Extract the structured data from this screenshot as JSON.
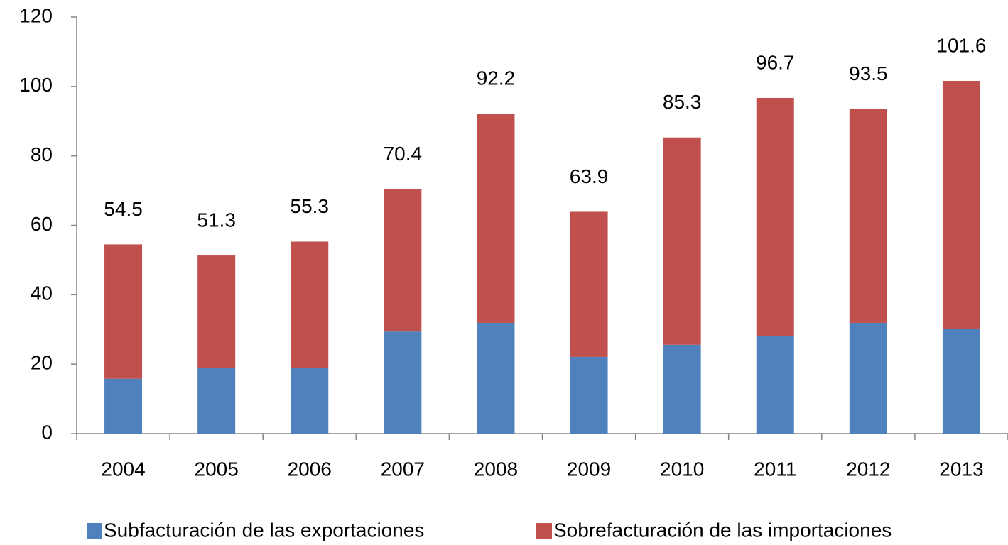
{
  "chart_data": {
    "type": "stacked_bar",
    "categories": [
      "2004",
      "2005",
      "2006",
      "2007",
      "2008",
      "2009",
      "2010",
      "2011",
      "2012",
      "2013"
    ],
    "series": [
      {
        "name": "Subfacturación de las exportaciones",
        "color": "#4f81bd",
        "values": [
          15.8,
          18.8,
          18.8,
          29.4,
          31.9,
          22.1,
          25.6,
          28.0,
          31.9,
          30.1
        ]
      },
      {
        "name": "Sobrefacturación de las importaciones",
        "color": "#c0504d",
        "values": [
          38.7,
          32.5,
          36.5,
          41.0,
          60.3,
          41.8,
          59.7,
          68.7,
          61.6,
          71.5
        ]
      }
    ],
    "totals": [
      54.5,
      51.3,
      55.3,
      70.4,
      92.2,
      63.9,
      85.3,
      96.7,
      93.5,
      101.6
    ],
    "ylim": [
      0,
      120
    ],
    "yticks": [
      0,
      20,
      40,
      60,
      80,
      100,
      120
    ],
    "grid": false
  }
}
